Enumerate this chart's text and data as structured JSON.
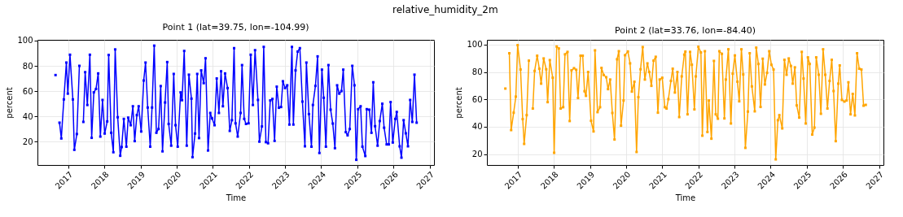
{
  "chart_data": [
    {
      "type": "line",
      "annotations": [
        "relative_humidity_2m"
      ],
      "title": "Point 1 (lat=39.75, lon=-104.99)",
      "xlabel": "Time",
      "ylabel": "percent",
      "xlim": [
        2016.15,
        2027.12
      ],
      "xticks": [
        2017,
        2018,
        2019,
        2020,
        2021,
        2022,
        2023,
        2024,
        2025,
        2026,
        2027
      ],
      "ylim": [
        1.5,
        100.6
      ],
      "yticks": [
        20,
        40,
        60,
        80,
        100
      ],
      "grid": true,
      "marker": "square",
      "series": [
        {
          "color": "#0000ff",
          "x": [
            2016.65,
            2016.7,
            2016.76,
            2016.81,
            2016.88,
            2016.95,
            2016.99,
            2017.05,
            2017.13,
            2017.17,
            2017.24,
            2017.31,
            2017.36,
            2017.42,
            2017.47,
            2017.53,
            2017.6,
            2017.65,
            2017.71,
            2017.77,
            2017.83,
            2017.89,
            2017.95,
            2018.01,
            2018.08,
            2018.12,
            2018.19,
            2018.25,
            2018.3,
            2018.37,
            2018.44,
            2018.48,
            2018.54,
            2018.61,
            2018.66,
            2018.73,
            2018.79,
            2018.84,
            2018.9,
            2018.95,
            2019.02,
            2019.09,
            2019.14,
            2019.2,
            2019.27,
            2019.32,
            2019.38,
            2019.44,
            2019.5,
            2019.56,
            2019.61,
            2019.68,
            2019.74,
            2019.78,
            2019.85,
            2019.92,
            2019.97,
            2020.03,
            2020.11,
            2020.15,
            2020.21,
            2020.28,
            2020.34,
            2020.41,
            2020.44,
            2020.51,
            2020.57,
            2020.62,
            2020.68,
            2020.75,
            2020.8,
            2020.87,
            2020.93,
            2020.98,
            2021.05,
            2021.11,
            2021.17,
            2021.23,
            2021.28,
            2021.34,
            2021.41,
            2021.47,
            2021.53,
            2021.59,
            2021.63,
            2021.69,
            2021.77,
            2021.81,
            2021.87,
            2021.92,
            2021.99,
            2022.05,
            2022.11,
            2022.17,
            2022.25,
            2022.29,
            2022.36,
            2022.41,
            2022.47,
            2022.53,
            2022.59,
            2022.65,
            2022.71,
            2022.77,
            2022.83,
            2022.89,
            2022.94,
            2023.0,
            2023.06,
            2023.12,
            2023.19,
            2023.23,
            2023.29,
            2023.35,
            2023.41,
            2023.48,
            2023.55,
            2023.59,
            2023.66,
            2023.73,
            2023.77,
            2023.84,
            2023.9,
            2023.95,
            2024.02,
            2024.07,
            2024.13,
            2024.2,
            2024.26,
            2024.32,
            2024.38,
            2024.44,
            2024.5,
            2024.56,
            2024.61,
            2024.68,
            2024.73,
            2024.79,
            2024.86,
            2024.92,
            2024.97,
            2025.02,
            2025.09,
            2025.14,
            2025.22,
            2025.26,
            2025.33,
            2025.39,
            2025.44,
            2025.49,
            2025.56,
            2025.62,
            2025.69,
            2025.74,
            2025.81,
            2025.87,
            2025.92,
            2025.98,
            2026.05,
            2026.09,
            2026.17,
            2026.22,
            2026.28,
            2026.34,
            2026.4,
            2026.46,
            2026.52,
            2026.58,
            2026.64
          ],
          "values": [
            72.7,
            null,
            35,
            22.5,
            53.4,
            82.6,
            58,
            88.8,
            53.4,
            13.5,
            26,
            80,
            null,
            35.6,
            75,
            49,
            88.8,
            23,
            59,
            61.7,
            74,
            24,
            53,
            26.4,
            36,
            88.6,
            27,
            11.6,
            93,
            39.3,
            8.8,
            15.7,
            38,
            16,
            39,
            33,
            48,
            20.4,
            41,
            48,
            28,
            68.4,
            82.6,
            47,
            16,
            47,
            96,
            27,
            30,
            64,
            12.3,
            51,
            83,
            34,
            16.8,
            73.6,
            33,
            16,
            59,
            52.8,
            91.8,
            16.8,
            73,
            54,
            7.7,
            26.4,
            73.6,
            22.8,
            76.4,
            66.3,
            86,
            13,
            42.7,
            38.4,
            33,
            70,
            42.7,
            75.7,
            48,
            74,
            62.4,
            28.5,
            37,
            94,
            34.5,
            24,
            42.7,
            80.6,
            38,
            34,
            34.5,
            88.8,
            49,
            92.4,
            53,
            20,
            32,
            95,
            19.6,
            18.7,
            52.6,
            53.8,
            20.6,
            63.5,
            46.8,
            47.4,
            67.8,
            62.4,
            64.6,
            33.5,
            95,
            33.5,
            76.4,
            91.3,
            94,
            51.7,
            16.3,
            82.6,
            41.8,
            16,
            49,
            64.1,
            87.5,
            11,
            77,
            54.7,
            16,
            80.6,
            45.3,
            34.3,
            14.8,
            64.6,
            58,
            60,
            77,
            27.5,
            25,
            30,
            80,
            64.6,
            5.6,
            45.7,
            48,
            16,
            8.6,
            45.7,
            45.3,
            27,
            67,
            32.2,
            16.8,
            36.3,
            50,
            31,
            17.8,
            17.8,
            51.3,
            19.3,
            38,
            43.5,
            16.3,
            7.3,
            37,
            26.6,
            16.3,
            53,
            35.6,
            73,
            35
          ]
        }
      ]
    },
    {
      "type": "line",
      "title": "Point 2 (lat=33.76, lon=-84.40)",
      "xlabel": "Time",
      "ylabel": "percent",
      "xlim": [
        2016.15,
        2027.12
      ],
      "xticks": [
        2017,
        2018,
        2019,
        2020,
        2021,
        2022,
        2023,
        2024,
        2025,
        2026,
        2027
      ],
      "ylim": [
        12.1,
        103.5
      ],
      "yticks": [
        20,
        40,
        60,
        80,
        100
      ],
      "grid": true,
      "marker": "square",
      "series": [
        {
          "color": "#ffa500",
          "x": [
            2016.66,
            2016.7,
            2016.77,
            2016.82,
            2016.89,
            2016.95,
            2017.0,
            2017.08,
            2017.14,
            2017.18,
            2017.25,
            2017.31,
            2017.36,
            2017.42,
            2017.47,
            2017.54,
            2017.6,
            2017.65,
            2017.72,
            2017.79,
            2017.83,
            2017.89,
            2017.97,
            2018.01,
            2018.08,
            2018.14,
            2018.19,
            2018.26,
            2018.31,
            2018.38,
            2018.44,
            2018.49,
            2018.56,
            2018.62,
            2018.67,
            2018.74,
            2018.8,
            2018.85,
            2018.89,
            2018.95,
            2019.03,
            2019.1,
            2019.14,
            2019.21,
            2019.28,
            2019.32,
            2019.38,
            2019.45,
            2019.5,
            2019.56,
            2019.62,
            2019.68,
            2019.75,
            2019.8,
            2019.86,
            2019.93,
            2019.97,
            2020.05,
            2020.11,
            2020.16,
            2020.23,
            2020.29,
            2020.34,
            2020.4,
            2020.46,
            2020.52,
            2020.59,
            2020.64,
            2020.7,
            2020.76,
            2020.82,
            2020.88,
            2020.93,
            2021.0,
            2021.07,
            2021.12,
            2021.17,
            2021.24,
            2021.29,
            2021.35,
            2021.42,
            2021.47,
            2021.54,
            2021.61,
            2021.64,
            2021.7,
            2021.77,
            2021.82,
            2021.89,
            2021.93,
            2022.0,
            2022.07,
            2022.11,
            2022.18,
            2022.25,
            2022.29,
            2022.36,
            2022.43,
            2022.48,
            2022.54,
            2022.58,
            2022.65,
            2022.72,
            2022.76,
            2022.83,
            2022.9,
            2022.95,
            2023.01,
            2023.08,
            2023.13,
            2023.19,
            2023.24,
            2023.3,
            2023.37,
            2023.42,
            2023.48,
            2023.56,
            2023.6,
            2023.66,
            2023.72,
            2023.78,
            2023.84,
            2023.9,
            2023.96,
            2024.02,
            2024.08,
            2024.14,
            2024.2,
            2024.24,
            2024.32,
            2024.38,
            2024.44,
            2024.5,
            2024.56,
            2024.61,
            2024.67,
            2024.72,
            2024.79,
            2024.86,
            2024.91,
            2024.97,
            2025.03,
            2025.08,
            2025.15,
            2025.21,
            2025.26,
            2025.33,
            2025.39,
            2025.45,
            2025.51,
            2025.57,
            2025.63,
            2025.69,
            2025.74,
            2025.8,
            2025.87,
            2025.91,
            2025.97,
            2026.04,
            2026.1,
            2026.15,
            2026.21,
            2026.27,
            2026.33,
            2026.39,
            2026.45,
            2026.51,
            2026.57,
            2026.63
          ],
          "values": [
            67.9,
            null,
            93.7,
            37.6,
            50.3,
            62,
            99.6,
            81.8,
            45.6,
            27.5,
            48.5,
            88.3,
            null,
            53.3,
            80.8,
            91.9,
            82.4,
            71.5,
            89.9,
            82,
            58,
            88.7,
            75.8,
            21,
            98.6,
            97.2,
            53.3,
            54.3,
            92.9,
            94.7,
            44.2,
            81.2,
            82.8,
            81.6,
            61,
            91.9,
            91.9,
            66,
            62.6,
            80,
            44.4,
            36.6,
            95.8,
            50.7,
            54.3,
            83,
            77.8,
            76.2,
            67.5,
            74.5,
            50.1,
            30.7,
            89.3,
            95.2,
            40.8,
            59.2,
            92.3,
            95,
            86.3,
            65.7,
            72.9,
            21.6,
            61.6,
            82,
            98.2,
            74.5,
            86.3,
            80,
            69.9,
            88.3,
            91.1,
            50.3,
            74.5,
            75.8,
            54.3,
            53.3,
            60.2,
            73.5,
            82.4,
            65,
            80,
            47.1,
            76.8,
            92.7,
            94.9,
            49.1,
            94.7,
            85.3,
            52.7,
            76.8,
            98.4,
            94.3,
            33.5,
            95.2,
            36.2,
            59.2,
            31.3,
            88.1,
            49.1,
            45.9,
            95.2,
            93.3,
            46.1,
            74.5,
            96.6,
            42.4,
            78.8,
            92.1,
            72.9,
            58.6,
            96.6,
            78.2,
            24.6,
            51.1,
            93.7,
            69.5,
            51.3,
            97.8,
            85.9,
            54.5,
            89.7,
            70.9,
            79.4,
            95.2,
            85.3,
            81.8,
            16.2,
            44.8,
            48.5,
            38.8,
            88.9,
            78,
            89.9,
            84.4,
            71.5,
            83.4,
            55.6,
            46.7,
            94.7,
            75.2,
            42.4,
            90.7,
            85.9,
            34.3,
            39.4,
            90.7,
            78,
            49.5,
            96.6,
            78,
            53.3,
            73.5,
            88.9,
            66.1,
            29.5,
            71.5,
            84.8,
            59.6,
            58.4,
            59.2,
            72.5,
            49.1,
            64,
            48.3,
            93.7,
            82.4,
            81.8,
            55.4,
            56
          ]
        }
      ]
    }
  ]
}
